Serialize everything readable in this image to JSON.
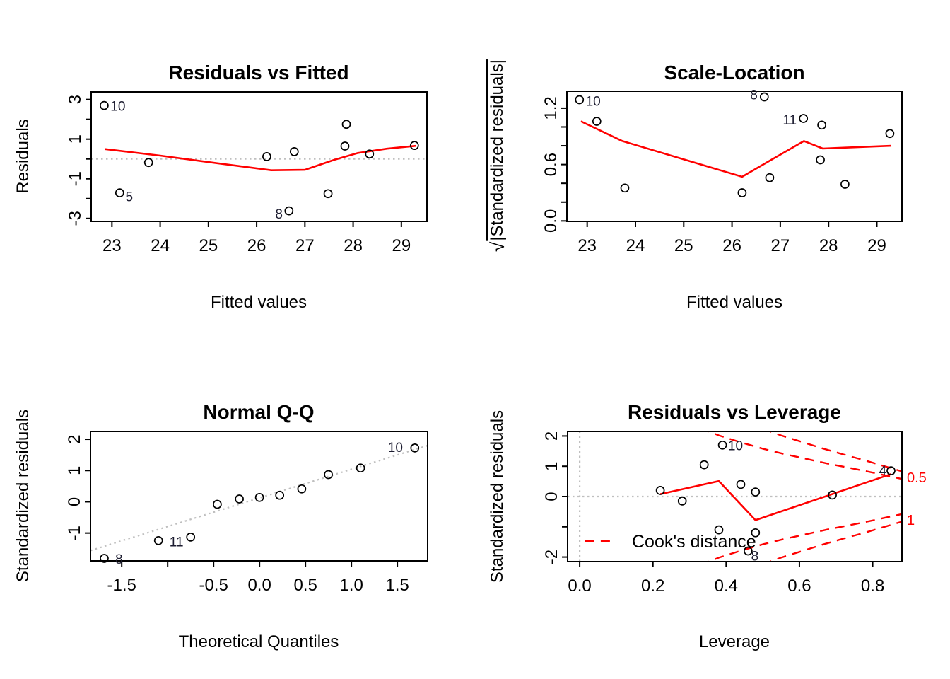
{
  "figure_description": "R regression diagnostic plots (2x2)",
  "colors": {
    "accent_red": "#ff0000",
    "dotted_gray": "#bfbfbf",
    "marker_black": "#000000",
    "id_label": "#1c1c30",
    "cook_label_red": "#ff0000"
  },
  "chart_data": [
    {
      "type": "scatter",
      "title": "Residuals vs Fitted",
      "xlabel": "Fitted values",
      "ylabel": "Residuals",
      "xlim": [
        22.57,
        29.53
      ],
      "ylim": [
        -3.15,
        3.38
      ],
      "grid": false,
      "xticks": {
        "values": [
          23,
          24,
          25,
          26,
          27,
          28,
          29
        ],
        "labels": [
          "23",
          "24",
          "25",
          "26",
          "27",
          "28",
          "29"
        ]
      },
      "yticks": {
        "values": [
          -3,
          -2,
          -1,
          0,
          1,
          2,
          3
        ],
        "labels": [
          "-3",
          "",
          "-1",
          "",
          "1",
          "",
          "3"
        ]
      },
      "points": [
        [
          22.84,
          2.7
        ],
        [
          23.16,
          -1.71
        ],
        [
          23.76,
          -0.18
        ],
        [
          26.21,
          0.12
        ],
        [
          26.67,
          -2.62
        ],
        [
          26.78,
          0.37
        ],
        [
          27.48,
          -1.75
        ],
        [
          27.83,
          0.65
        ],
        [
          27.86,
          1.75
        ],
        [
          28.34,
          0.25
        ],
        [
          29.27,
          0.68
        ]
      ],
      "point_labels": [
        {
          "text": "10",
          "x": 22.97,
          "y": 2.64,
          "anchor": "start"
        },
        {
          "text": "5",
          "x": 23.28,
          "y": -1.92,
          "anchor": "start"
        },
        {
          "text": "8",
          "x": 26.54,
          "y": -2.8,
          "anchor": "end"
        }
      ],
      "lines": [
        {
          "name": "zero-reference-line",
          "color": "#bfbfbf",
          "dash": "dotted",
          "width": 2.2,
          "pts": [
            [
              22.57,
              0
            ],
            [
              29.53,
              0
            ]
          ]
        },
        {
          "name": "lowess-smooth",
          "color": "#ff0000",
          "dash": "solid",
          "width": 2.6,
          "pts": [
            [
              22.85,
              0.5
            ],
            [
              24.0,
              0.17
            ],
            [
              25.2,
              -0.22
            ],
            [
              26.3,
              -0.57
            ],
            [
              27.0,
              -0.55
            ],
            [
              27.6,
              -0.05
            ],
            [
              28.1,
              0.3
            ],
            [
              28.7,
              0.52
            ],
            [
              29.3,
              0.66
            ]
          ]
        }
      ]
    },
    {
      "type": "scatter",
      "title": "Scale-Location",
      "xlabel": "Fitted values",
      "ylabel": "√|Standardized residuals|",
      "ylabel_parts": {
        "radical": "√",
        "inner": "|Standardized residuals|"
      },
      "xlim": [
        22.58,
        29.52
      ],
      "ylim": [
        -0.005,
        1.38
      ],
      "grid": false,
      "xticks": {
        "values": [
          23,
          24,
          25,
          26,
          27,
          28,
          29
        ],
        "labels": [
          "23",
          "24",
          "25",
          "26",
          "27",
          "28",
          "29"
        ]
      },
      "yticks": {
        "values": [
          0,
          0.2,
          0.4,
          0.6,
          0.8,
          1.0,
          1.2
        ],
        "labels": [
          "0.0",
          "",
          "",
          "0.6",
          "",
          "",
          "1.2"
        ]
      },
      "points": [
        [
          22.84,
          1.29
        ],
        [
          23.2,
          1.06
        ],
        [
          23.78,
          0.35
        ],
        [
          26.21,
          0.3
        ],
        [
          26.67,
          1.32
        ],
        [
          26.78,
          0.46
        ],
        [
          27.48,
          1.09
        ],
        [
          27.83,
          0.65
        ],
        [
          27.86,
          1.02
        ],
        [
          28.34,
          0.39
        ],
        [
          29.27,
          0.93
        ]
      ],
      "point_labels": [
        {
          "text": "10",
          "x": 22.97,
          "y": 1.27,
          "anchor": "start"
        },
        {
          "text": "8",
          "x": 26.53,
          "y": 1.34,
          "anchor": "end"
        },
        {
          "text": "11",
          "x": 27.34,
          "y": 1.07,
          "anchor": "end"
        }
      ],
      "lines": [
        {
          "name": "lowess-smooth",
          "color": "#ff0000",
          "dash": "solid",
          "width": 2.6,
          "pts": [
            [
              22.87,
              1.06
            ],
            [
              23.73,
              0.85
            ],
            [
              26.21,
              0.47
            ],
            [
              26.78,
              0.64
            ],
            [
              27.49,
              0.85
            ],
            [
              27.88,
              0.77
            ],
            [
              28.35,
              0.78
            ],
            [
              29.3,
              0.8
            ]
          ]
        }
      ]
    },
    {
      "type": "scatter",
      "title": "Normal Q-Q",
      "xlabel": "Theoretical Quantiles",
      "ylabel": "Standardized residuals",
      "xlim": [
        -1.84,
        1.83
      ],
      "ylim": [
        -1.89,
        2.25
      ],
      "grid": false,
      "xticks": {
        "values": [
          -1.5,
          -1,
          -0.5,
          0,
          0.5,
          1,
          1.5
        ],
        "labels": [
          "-1.5",
          "",
          "-0.5",
          "0.0",
          "0.5",
          "1.0",
          "1.5"
        ]
      },
      "yticks": {
        "values": [
          -1,
          0,
          1,
          2
        ],
        "labels": [
          "-1",
          "0",
          "1",
          "2"
        ]
      },
      "points": [
        [
          -1.69,
          -1.81
        ],
        [
          -1.1,
          -1.24
        ],
        [
          -0.75,
          -1.13
        ],
        [
          -0.46,
          -0.08
        ],
        [
          -0.22,
          0.09
        ],
        [
          0,
          0.14
        ],
        [
          0.22,
          0.21
        ],
        [
          0.46,
          0.41
        ],
        [
          0.75,
          0.87
        ],
        [
          1.1,
          1.08
        ],
        [
          1.69,
          1.72
        ]
      ],
      "point_labels": [
        {
          "text": "8",
          "x": -1.57,
          "y": -1.85,
          "anchor": "start"
        },
        {
          "text": "11",
          "x": -0.98,
          "y": -1.29,
          "anchor": "start"
        },
        {
          "text": "10",
          "x": 1.56,
          "y": 1.73,
          "anchor": "end"
        }
      ],
      "lines": [
        {
          "name": "qq-reference-line",
          "color": "#bfbfbf",
          "dash": "dotted",
          "width": 2.2,
          "pts": [
            [
              -1.84,
              -1.56
            ],
            [
              1.83,
              1.8
            ]
          ]
        }
      ]
    },
    {
      "type": "scatter",
      "title": "Residuals vs Leverage",
      "xlabel": "Leverage",
      "ylabel": "Standardized residuals",
      "xlim": [
        -0.033,
        0.88
      ],
      "ylim": [
        -2.15,
        2.15
      ],
      "grid": false,
      "xticks": {
        "values": [
          0,
          0.2,
          0.4,
          0.6,
          0.8
        ],
        "labels": [
          "0.0",
          "0.2",
          "0.4",
          "0.6",
          "0.8"
        ]
      },
      "yticks": {
        "values": [
          -2,
          -1,
          0,
          1,
          2
        ],
        "labels": [
          "-2",
          "",
          "0",
          "1",
          "2"
        ]
      },
      "points": [
        [
          0.22,
          0.2
        ],
        [
          0.28,
          -0.15
        ],
        [
          0.34,
          1.05
        ],
        [
          0.39,
          1.7
        ],
        [
          0.44,
          0.4
        ],
        [
          0.48,
          0.15
        ],
        [
          0.38,
          -1.1
        ],
        [
          0.48,
          -1.2
        ],
        [
          0.46,
          -1.8
        ],
        [
          0.69,
          0.05
        ],
        [
          0.85,
          0.85
        ]
      ],
      "point_labels": [
        {
          "text": "10",
          "x": 0.405,
          "y": 1.67,
          "anchor": "start"
        },
        {
          "text": "8",
          "x": 0.468,
          "y": -1.97,
          "anchor": "start"
        },
        {
          "text": "4",
          "x": 0.838,
          "y": 0.84,
          "anchor": "end"
        }
      ],
      "lines": [
        {
          "name": "zero-leverage-line",
          "color": "#bfbfbf",
          "dash": "dotted",
          "width": 2.2,
          "pts": [
            [
              0,
              -2.15
            ],
            [
              0,
              2.15
            ]
          ]
        },
        {
          "name": "zero-residual-line",
          "color": "#bfbfbf",
          "dash": "dotted",
          "width": 2.2,
          "pts": [
            [
              -0.033,
              0
            ],
            [
              0.88,
              0
            ]
          ]
        },
        {
          "name": "cooks-contour-0.5-upper",
          "color": "#ff0000",
          "dash": "dashed",
          "width": 2.4,
          "pts": [
            [
              0.33,
              2.26
            ],
            [
              0.38,
              2.02
            ],
            [
              0.44,
              1.79
            ],
            [
              0.5,
              1.58
            ],
            [
              0.56,
              1.4
            ],
            [
              0.62,
              1.24
            ],
            [
              0.68,
              1.08
            ],
            [
              0.74,
              0.94
            ],
            [
              0.8,
              0.79
            ],
            [
              0.88,
              0.58
            ]
          ]
        },
        {
          "name": "cooks-contour-1-upper",
          "color": "#ff0000",
          "dash": "dashed",
          "width": 2.4,
          "pts": [
            [
              0.5,
              2.24
            ],
            [
              0.55,
              2.02
            ],
            [
              0.6,
              1.83
            ],
            [
              0.66,
              1.6
            ],
            [
              0.72,
              1.39
            ],
            [
              0.78,
              1.19
            ],
            [
              0.83,
              1.01
            ],
            [
              0.88,
              0.83
            ]
          ]
        },
        {
          "name": "cooks-contour-0.5-lower",
          "color": "#ff0000",
          "dash": "dashed",
          "width": 2.4,
          "pts": [
            [
              0.33,
              -2.26
            ],
            [
              0.38,
              -2.02
            ],
            [
              0.44,
              -1.79
            ],
            [
              0.5,
              -1.58
            ],
            [
              0.56,
              -1.4
            ],
            [
              0.62,
              -1.24
            ],
            [
              0.68,
              -1.08
            ],
            [
              0.74,
              -0.94
            ],
            [
              0.8,
              -0.79
            ],
            [
              0.88,
              -0.58
            ]
          ]
        },
        {
          "name": "cooks-contour-1-lower",
          "color": "#ff0000",
          "dash": "dashed",
          "width": 2.4,
          "pts": [
            [
              0.5,
              -2.24
            ],
            [
              0.55,
              -2.02
            ],
            [
              0.6,
              -1.83
            ],
            [
              0.66,
              -1.6
            ],
            [
              0.72,
              -1.39
            ],
            [
              0.78,
              -1.19
            ],
            [
              0.83,
              -1.01
            ],
            [
              0.88,
              -0.83
            ]
          ]
        },
        {
          "name": "legend-line-sample",
          "color": "#ff0000",
          "dash": "dashed",
          "width": 2.4,
          "pts": [
            [
              0.015,
              -1.47
            ],
            [
              0.1,
              -1.47
            ]
          ]
        },
        {
          "name": "lowess-smooth",
          "color": "#ff0000",
          "dash": "solid",
          "width": 2.6,
          "pts": [
            [
              0.22,
              0.08
            ],
            [
              0.38,
              0.51
            ],
            [
              0.48,
              -0.78
            ],
            [
              0.85,
              0.74
            ]
          ]
        }
      ],
      "legend": {
        "label": "Cook's distance",
        "position": "bottom-left-inside"
      },
      "contour_labels": [
        {
          "text": "0.5",
          "level": 0.5
        },
        {
          "text": "1",
          "level": 1
        }
      ]
    }
  ]
}
